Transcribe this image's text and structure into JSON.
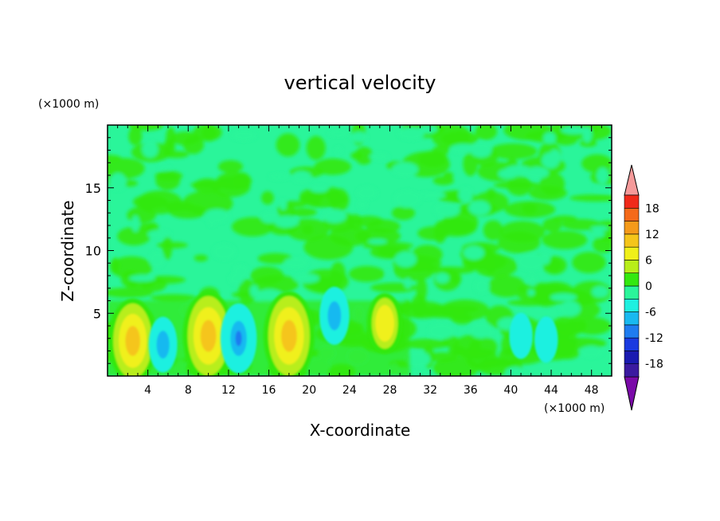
{
  "chart_data": {
    "type": "heatmap",
    "title": "vertical velocity",
    "xlabel": "X-coordinate",
    "ylabel": "Z-coordinate",
    "x_unit": "(×1000 m)",
    "y_unit": "(×1000 m)",
    "xlim": [
      0,
      50
    ],
    "ylim": [
      0,
      20
    ],
    "x_ticks": [
      4,
      8,
      12,
      16,
      20,
      24,
      28,
      32,
      36,
      40,
      44,
      48
    ],
    "y_ticks": [
      5,
      10,
      15
    ],
    "colorbar": {
      "tick_values": [
        18,
        12,
        6,
        0,
        -6,
        -12,
        -18
      ],
      "levels": [
        -21,
        -18,
        -15,
        -12,
        -9,
        -6,
        -3,
        0,
        3,
        6,
        9,
        12,
        15,
        18,
        21
      ],
      "colors": [
        "#7a0aa8",
        "#3b1aa0",
        "#1a1ab0",
        "#1a3ae0",
        "#1f7cf0",
        "#19b9f0",
        "#1ff0e0",
        "#2af59a",
        "#33e80f",
        "#b8ee1a",
        "#f0f01a",
        "#f5c51a",
        "#f59a1a",
        "#f56a1a",
        "#f02a1a",
        "#f59a9a"
      ],
      "extend": "both"
    },
    "cells": [
      {
        "x": 2.5,
        "z": 2.8,
        "w": 0.9
      },
      {
        "x": 5.5,
        "z": 2.5,
        "w": -0.5
      },
      {
        "x": 10.0,
        "z": 3.2,
        "w": 1.0
      },
      {
        "x": 13.0,
        "z": 3.0,
        "w": -0.8
      },
      {
        "x": 18.0,
        "z": 3.2,
        "w": 1.0
      },
      {
        "x": 22.5,
        "z": 4.8,
        "w": -0.55
      },
      {
        "x": 27.5,
        "z": 4.2,
        "w": 0.4
      },
      {
        "x": 41.0,
        "z": 3.2,
        "w": -0.3
      },
      {
        "x": 43.5,
        "z": 2.9,
        "w": -0.3
      }
    ]
  }
}
